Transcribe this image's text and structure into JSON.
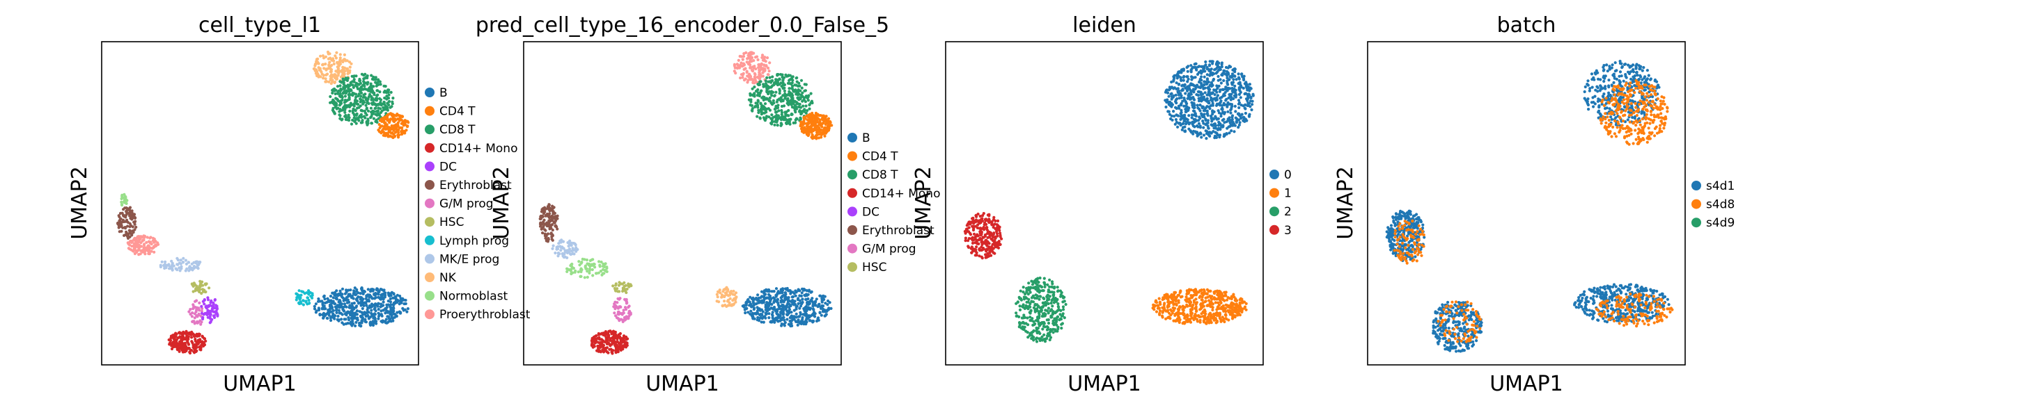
{
  "chart_data": [
    {
      "type": "scatter",
      "title": "cell_type_l1",
      "xlabel": "UMAP1",
      "ylabel": "UMAP2",
      "ticks": "none",
      "legend_placement": "right",
      "legend": [
        {
          "label": "B",
          "color": "#1f77b4"
        },
        {
          "label": "CD4 T",
          "color": "#ff7f0e"
        },
        {
          "label": "CD8 T",
          "color": "#279e68"
        },
        {
          "label": "CD14+ Mono",
          "color": "#d62728"
        },
        {
          "label": "DC",
          "color": "#aa40fc"
        },
        {
          "label": "Erythroblast",
          "color": "#8c564b"
        },
        {
          "label": "G/M prog",
          "color": "#e377c2"
        },
        {
          "label": "HSC",
          "color": "#b5bd61"
        },
        {
          "label": "Lymph prog",
          "color": "#17becf"
        },
        {
          "label": "MK/E prog",
          "color": "#aec7e8"
        },
        {
          "label": "NK",
          "color": "#ffbb78"
        },
        {
          "label": "Normoblast",
          "color": "#98df8a"
        },
        {
          "label": "Proerythroblast",
          "color": "#ff9896"
        }
      ],
      "clusters": [
        {
          "label": "NK",
          "cx": 0.73,
          "cy": 0.92,
          "rx": 0.06,
          "ry": 0.05,
          "n": 160
        },
        {
          "label": "CD8 T",
          "cx": 0.82,
          "cy": 0.82,
          "rx": 0.1,
          "ry": 0.08,
          "n": 420
        },
        {
          "label": "CD4 T",
          "cx": 0.92,
          "cy": 0.74,
          "rx": 0.05,
          "ry": 0.04,
          "n": 170
        },
        {
          "label": "Lymph prog",
          "cx": 0.64,
          "cy": 0.21,
          "rx": 0.03,
          "ry": 0.025,
          "n": 40
        },
        {
          "label": "B",
          "cx": 0.82,
          "cy": 0.18,
          "rx": 0.15,
          "ry": 0.06,
          "n": 520
        },
        {
          "label": "Erythroblast",
          "cx": 0.08,
          "cy": 0.44,
          "rx": 0.03,
          "ry": 0.05,
          "n": 110
        },
        {
          "label": "Normoblast",
          "cx": 0.07,
          "cy": 0.51,
          "rx": 0.01,
          "ry": 0.02,
          "n": 25
        },
        {
          "label": "Proerythroblast",
          "cx": 0.13,
          "cy": 0.37,
          "rx": 0.05,
          "ry": 0.03,
          "n": 120
        },
        {
          "label": "MK/E prog",
          "cx": 0.25,
          "cy": 0.31,
          "rx": 0.07,
          "ry": 0.02,
          "n": 70
        },
        {
          "label": "HSC",
          "cx": 0.31,
          "cy": 0.24,
          "rx": 0.03,
          "ry": 0.02,
          "n": 40
        },
        {
          "label": "G/M prog",
          "cx": 0.3,
          "cy": 0.16,
          "rx": 0.025,
          "ry": 0.04,
          "n": 40
        },
        {
          "label": "DC",
          "cx": 0.34,
          "cy": 0.17,
          "rx": 0.03,
          "ry": 0.04,
          "n": 70
        },
        {
          "label": "CD14+ Mono",
          "cx": 0.27,
          "cy": 0.07,
          "rx": 0.06,
          "ry": 0.035,
          "n": 200
        }
      ]
    },
    {
      "type": "scatter",
      "title": "pred_cell_type_16_encoder_0.0_False_5",
      "xlabel": "UMAP1",
      "ylabel": "UMAP2",
      "ticks": "none",
      "legend_placement": "right",
      "legend": [
        {
          "label": "B",
          "color": "#1f77b4"
        },
        {
          "label": "CD4 T",
          "color": "#ff7f0e"
        },
        {
          "label": "CD8 T",
          "color": "#279e68"
        },
        {
          "label": "CD14+ Mono",
          "color": "#d62728"
        },
        {
          "label": "DC",
          "color": "#aa40fc"
        },
        {
          "label": "Erythroblast",
          "color": "#8c564b"
        },
        {
          "label": "G/M prog",
          "color": "#e377c2"
        },
        {
          "label": "HSC",
          "color": "#b5bd61"
        }
      ],
      "extra_colors": [
        "#17becf",
        "#aec7e8",
        "#ffbb78",
        "#98df8a",
        "#ff9896"
      ],
      "clusters": [
        {
          "label": "Proerythroblast",
          "cx": 0.72,
          "cy": 0.92,
          "rx": 0.06,
          "ry": 0.05,
          "n": 150
        },
        {
          "label": "CD8 T",
          "cx": 0.81,
          "cy": 0.82,
          "rx": 0.1,
          "ry": 0.08,
          "n": 420
        },
        {
          "label": "CD4 T",
          "cx": 0.92,
          "cy": 0.74,
          "rx": 0.05,
          "ry": 0.04,
          "n": 220
        },
        {
          "label": "NK",
          "cx": 0.64,
          "cy": 0.21,
          "rx": 0.035,
          "ry": 0.03,
          "n": 60
        },
        {
          "label": "B",
          "cx": 0.83,
          "cy": 0.18,
          "rx": 0.14,
          "ry": 0.06,
          "n": 500
        },
        {
          "label": "Erythroblast",
          "cx": 0.08,
          "cy": 0.44,
          "rx": 0.03,
          "ry": 0.06,
          "n": 130
        },
        {
          "label": "Normoblast",
          "cx": 0.2,
          "cy": 0.3,
          "rx": 0.07,
          "ry": 0.03,
          "n": 80
        },
        {
          "label": "MK/E prog",
          "cx": 0.13,
          "cy": 0.36,
          "rx": 0.04,
          "ry": 0.03,
          "n": 60
        },
        {
          "label": "HSC",
          "cx": 0.31,
          "cy": 0.24,
          "rx": 0.03,
          "ry": 0.02,
          "n": 30
        },
        {
          "label": "G/M prog",
          "cx": 0.31,
          "cy": 0.17,
          "rx": 0.03,
          "ry": 0.04,
          "n": 60
        },
        {
          "label": "CD14+ Mono",
          "cx": 0.27,
          "cy": 0.07,
          "rx": 0.06,
          "ry": 0.035,
          "n": 210
        }
      ]
    },
    {
      "type": "scatter",
      "title": "leiden",
      "xlabel": "UMAP1",
      "ylabel": "UMAP2",
      "ticks": "none",
      "legend_placement": "right",
      "legend": [
        {
          "label": "0",
          "color": "#1f77b4"
        },
        {
          "label": "1",
          "color": "#ff7f0e"
        },
        {
          "label": "2",
          "color": "#279e68"
        },
        {
          "label": "3",
          "color": "#d62728"
        }
      ],
      "clusters": [
        {
          "label": "0",
          "cx": 0.83,
          "cy": 0.82,
          "rx": 0.14,
          "ry": 0.12,
          "n": 800
        },
        {
          "label": "1",
          "cx": 0.8,
          "cy": 0.18,
          "rx": 0.15,
          "ry": 0.055,
          "n": 520
        },
        {
          "label": "3",
          "cx": 0.12,
          "cy": 0.4,
          "rx": 0.06,
          "ry": 0.07,
          "n": 260
        },
        {
          "label": "2",
          "cx": 0.3,
          "cy": 0.17,
          "rx": 0.08,
          "ry": 0.1,
          "n": 360
        }
      ]
    },
    {
      "type": "scatter",
      "title": "batch",
      "xlabel": "UMAP1",
      "ylabel": "UMAP2",
      "ticks": "none",
      "legend_placement": "right",
      "legend": [
        {
          "label": "s4d1",
          "color": "#1f77b4"
        },
        {
          "label": "s4d8",
          "color": "#ff7f0e"
        },
        {
          "label": "s4d9",
          "color": "#279e68"
        }
      ],
      "clusters": [
        {
          "label": "s4d1",
          "cx": 0.8,
          "cy": 0.84,
          "rx": 0.12,
          "ry": 0.1,
          "n": 380
        },
        {
          "label": "s4d8",
          "cx": 0.84,
          "cy": 0.78,
          "rx": 0.11,
          "ry": 0.1,
          "n": 320
        },
        {
          "label": "s4d1",
          "cx": 0.8,
          "cy": 0.19,
          "rx": 0.15,
          "ry": 0.06,
          "n": 400
        },
        {
          "label": "s4d8",
          "cx": 0.84,
          "cy": 0.17,
          "rx": 0.12,
          "ry": 0.05,
          "n": 150
        },
        {
          "label": "s4d1",
          "cx": 0.12,
          "cy": 0.4,
          "rx": 0.06,
          "ry": 0.08,
          "n": 300
        },
        {
          "label": "s4d8",
          "cx": 0.13,
          "cy": 0.38,
          "rx": 0.05,
          "ry": 0.07,
          "n": 90
        },
        {
          "label": "s4d1",
          "cx": 0.28,
          "cy": 0.12,
          "rx": 0.08,
          "ry": 0.08,
          "n": 300
        },
        {
          "label": "s4d8",
          "cx": 0.29,
          "cy": 0.13,
          "rx": 0.07,
          "ry": 0.07,
          "n": 80
        }
      ]
    }
  ]
}
